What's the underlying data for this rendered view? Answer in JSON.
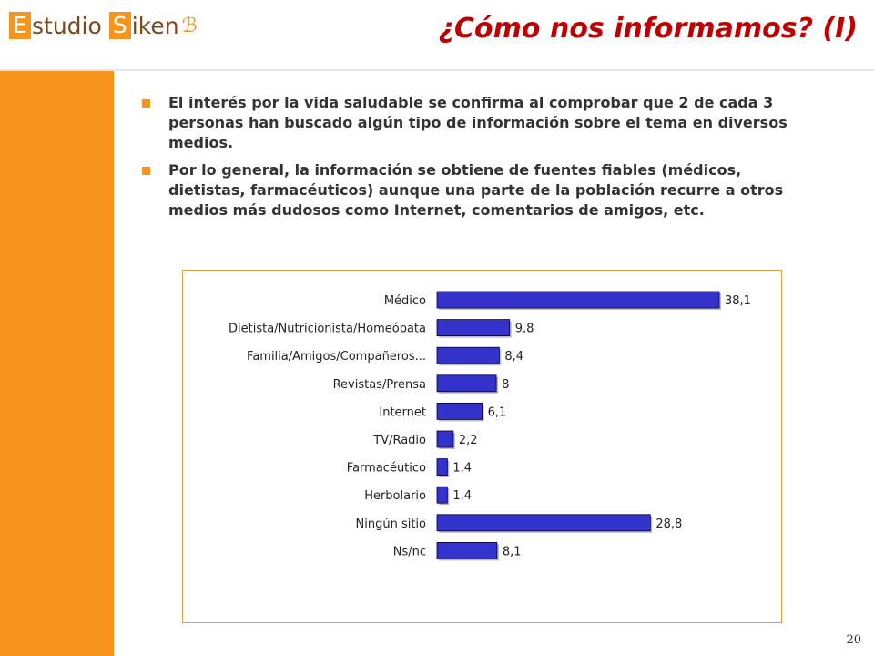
{
  "header": {
    "logo": {
      "letter1": "E",
      "word1": "studio",
      "letter2": "S",
      "word2": "iken",
      "swoosh": "ℬ"
    },
    "title": "¿Cómo nos informamos? (I)"
  },
  "bullets": [
    "El interés por la vida saludable se confirma al comprobar que 2 de cada 3 personas han buscado algún tipo de información sobre el tema en diversos medios.",
    "Por lo general, la información se obtiene de fuentes fiables (médicos, dietistas, farmacéuticos) aunque una parte de la población recurre a otros medios más dudosos como Internet, comentarios de amigos, etc."
  ],
  "colors": {
    "accent": "#F7941D",
    "title": "#c00000",
    "bar": "#3333CC"
  },
  "chart_data": {
    "type": "bar",
    "orientation": "horizontal",
    "categories": [
      "Médico",
      "Dietista/Nutricionista/Homeópata",
      "Familia/Amigos/Compañeros...",
      "Revistas/Prensa",
      "Internet",
      "TV/Radio",
      "Farmacéutico",
      "Herbolario",
      "Ningún sitio",
      "Ns/nc"
    ],
    "values": [
      38.1,
      9.8,
      8.4,
      8,
      6.1,
      2.2,
      1.4,
      1.4,
      28.8,
      8.1
    ],
    "value_labels": [
      "38,1",
      "9,8",
      "8,4",
      "8",
      "6,1",
      "2,2",
      "1,4",
      "1,4",
      "28,8",
      "8,1"
    ],
    "xlim": [
      0,
      38.1
    ],
    "grid": false,
    "legend": "none"
  },
  "footer": {
    "page_number": "20"
  }
}
